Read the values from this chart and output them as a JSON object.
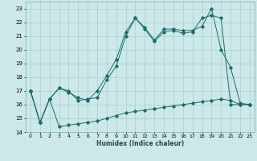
{
  "title": "",
  "xlabel": "Humidex (Indice chaleur)",
  "bg_color": "#cce8e8",
  "grid_color": "#aacece",
  "line_color": "#1a6e6e",
  "xlim": [
    -0.5,
    23.5
  ],
  "ylim": [
    14,
    23.5
  ],
  "yticks": [
    14,
    15,
    16,
    17,
    18,
    19,
    20,
    21,
    22,
    23
  ],
  "xticks": [
    0,
    1,
    2,
    3,
    4,
    5,
    6,
    7,
    8,
    9,
    10,
    11,
    12,
    13,
    14,
    15,
    16,
    17,
    18,
    19,
    20,
    21,
    22,
    23
  ],
  "series1_x": [
    0,
    1,
    2,
    3,
    4,
    5,
    6,
    7,
    8,
    9,
    10,
    11,
    12,
    13,
    14,
    15,
    16,
    17,
    18,
    19,
    20,
    21,
    22,
    23
  ],
  "series1_y": [
    17.0,
    14.7,
    16.4,
    17.2,
    16.9,
    16.5,
    16.3,
    17.0,
    18.1,
    19.3,
    21.3,
    22.3,
    21.6,
    20.7,
    21.5,
    21.5,
    21.4,
    21.4,
    21.7,
    23.0,
    20.0,
    18.7,
    16.1,
    16.0
  ],
  "series2_x": [
    0,
    1,
    2,
    3,
    4,
    5,
    6,
    7,
    8,
    9,
    10,
    11,
    12,
    13,
    14,
    15,
    16,
    17,
    18,
    19,
    20,
    21,
    22,
    23
  ],
  "series2_y": [
    17.0,
    14.7,
    16.4,
    17.2,
    17.0,
    16.3,
    16.4,
    16.5,
    17.8,
    18.8,
    21.0,
    22.3,
    21.5,
    20.6,
    21.3,
    21.4,
    21.2,
    21.3,
    22.3,
    22.5,
    22.3,
    16.0,
    16.0,
    16.0
  ],
  "series3_x": [
    0,
    1,
    2,
    3,
    4,
    5,
    6,
    7,
    8,
    9,
    10,
    11,
    12,
    13,
    14,
    15,
    16,
    17,
    18,
    19,
    20,
    21,
    22,
    23
  ],
  "series3_y": [
    17.0,
    14.7,
    16.4,
    14.4,
    14.5,
    14.6,
    14.7,
    14.8,
    15.0,
    15.2,
    15.4,
    15.5,
    15.6,
    15.7,
    15.8,
    15.9,
    16.0,
    16.1,
    16.2,
    16.3,
    16.4,
    16.3,
    16.0,
    16.0
  ]
}
